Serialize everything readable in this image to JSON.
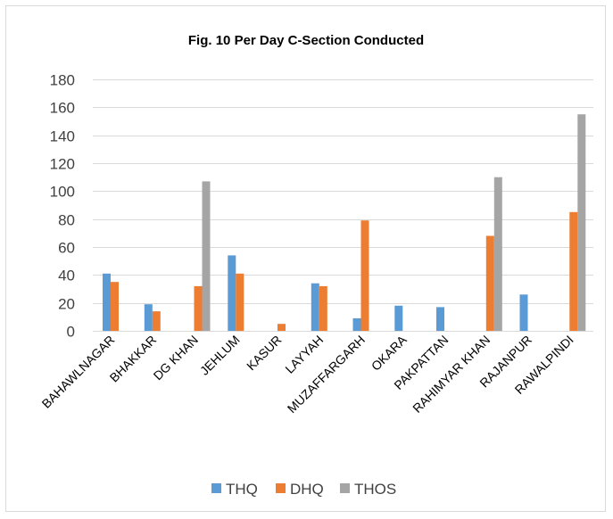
{
  "chart_data": {
    "type": "bar",
    "title": "Fig. 10  Per Day C-Section Conducted",
    "categories": [
      "BAHAWLNAGAR",
      "BHAKKAR",
      "DG KHAN",
      "JEHLUM",
      "KASUR",
      "LAYYAH",
      "MUZAFFARGARH",
      "OKARA",
      "PAKPATTAN",
      "RAHIMYAR KHAN",
      "RAJANPUR",
      "RAWALPINDI"
    ],
    "series": [
      {
        "name": "THQ",
        "color": "#5b9bd5",
        "values": [
          41,
          19,
          0,
          54,
          0,
          34,
          9,
          18,
          17,
          0,
          26,
          0
        ]
      },
      {
        "name": "DHQ",
        "color": "#ed7d31",
        "values": [
          35,
          14,
          32,
          41,
          5,
          32,
          79,
          0,
          0,
          68,
          0,
          85
        ]
      },
      {
        "name": "THOS",
        "color": "#a5a5a5",
        "values": [
          0,
          0,
          107,
          0,
          0,
          0,
          0,
          0,
          0,
          110,
          0,
          155
        ]
      }
    ],
    "ylim": [
      0,
      180
    ],
    "yticks": [
      0,
      20,
      40,
      60,
      80,
      100,
      120,
      140,
      160,
      180
    ],
    "grid": true,
    "legend_position": "bottom",
    "gridline_color": "#d9d9d9"
  }
}
